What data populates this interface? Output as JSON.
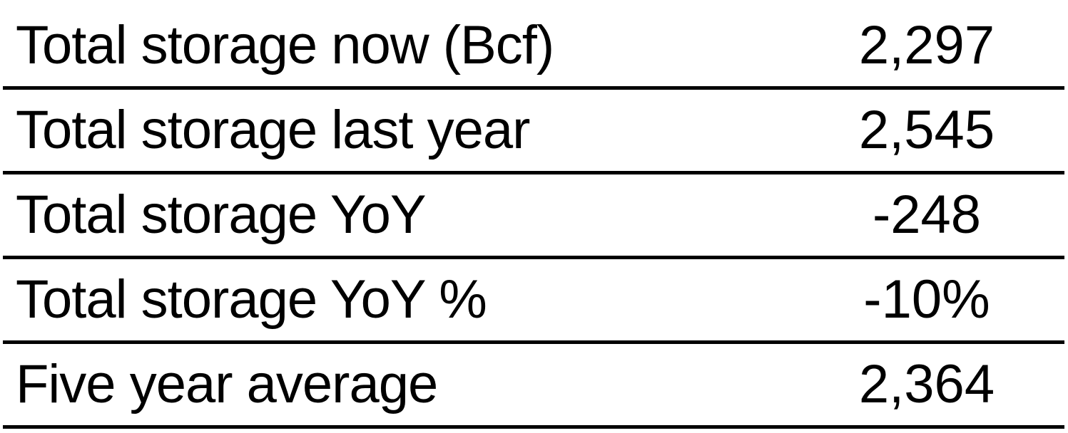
{
  "rows": [
    {
      "label": "Total storage now (Bcf)",
      "value": "2,297"
    },
    {
      "label": "Total storage last year",
      "value": "2,545"
    },
    {
      "label": "Total storage YoY",
      "value": "-248"
    },
    {
      "label": "Total storage YoY %",
      "value": "-10%"
    },
    {
      "label": "Five year average",
      "value": "2,364"
    }
  ]
}
